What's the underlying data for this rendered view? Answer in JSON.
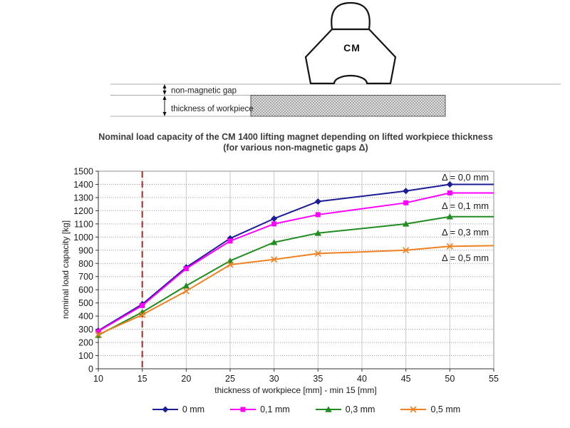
{
  "diagram": {
    "magnet_label": "CM",
    "gap_label": "non-magnetic gap",
    "workpiece_label": "thickness of workpiece"
  },
  "title": {
    "line1": "Nominal load capacity of the CM 1400 lifting magnet depending on lifted workpiece thickness",
    "line2": "(for various non-magnetic gaps Δ)"
  },
  "chart_data": {
    "type": "line",
    "xlabel": "thickness of workpiece [mm] - min 15 [mm]",
    "ylabel": "nominal load capacity [kg]",
    "xlim": [
      10,
      55
    ],
    "ylim": [
      0,
      1500
    ],
    "x_ticks": [
      10,
      15,
      20,
      25,
      30,
      35,
      40,
      45,
      50,
      55
    ],
    "y_ticks": [
      0,
      100,
      200,
      300,
      400,
      500,
      600,
      700,
      800,
      900,
      1000,
      1100,
      1200,
      1300,
      1400,
      1500
    ],
    "grid": "on",
    "legend_position": "bottom",
    "reference_line_x": 15,
    "reference_line_color": "#a52a2a",
    "x": [
      10,
      15,
      20,
      25,
      30,
      35,
      45,
      50,
      55
    ],
    "marker_x": [
      10,
      15,
      20,
      25,
      30,
      35,
      45,
      50
    ],
    "series": [
      {
        "name": "0 mm",
        "color": "#1c1c96",
        "marker": "diamond",
        "annotation": "Δ = 0,0 mm",
        "values": [
          290,
          490,
          770,
          990,
          1140,
          1270,
          1350,
          1400,
          1400
        ]
      },
      {
        "name": "0,1 mm",
        "color": "#ff00ff",
        "marker": "square",
        "annotation": "Δ = 0,1 mm",
        "values": [
          285,
          480,
          760,
          970,
          1100,
          1170,
          1260,
          1335,
          1335
        ]
      },
      {
        "name": "0,3 mm",
        "color": "#218c21",
        "marker": "triangle",
        "annotation": "Δ = 0,3 mm",
        "values": [
          255,
          430,
          630,
          820,
          960,
          1030,
          1100,
          1155,
          1155
        ]
      },
      {
        "name": "0,5 mm",
        "color": "#ef8122",
        "marker": "x",
        "annotation": "Δ = 0,5 mm",
        "values": [
          260,
          410,
          590,
          790,
          830,
          875,
          900,
          930,
          935
        ]
      }
    ]
  }
}
